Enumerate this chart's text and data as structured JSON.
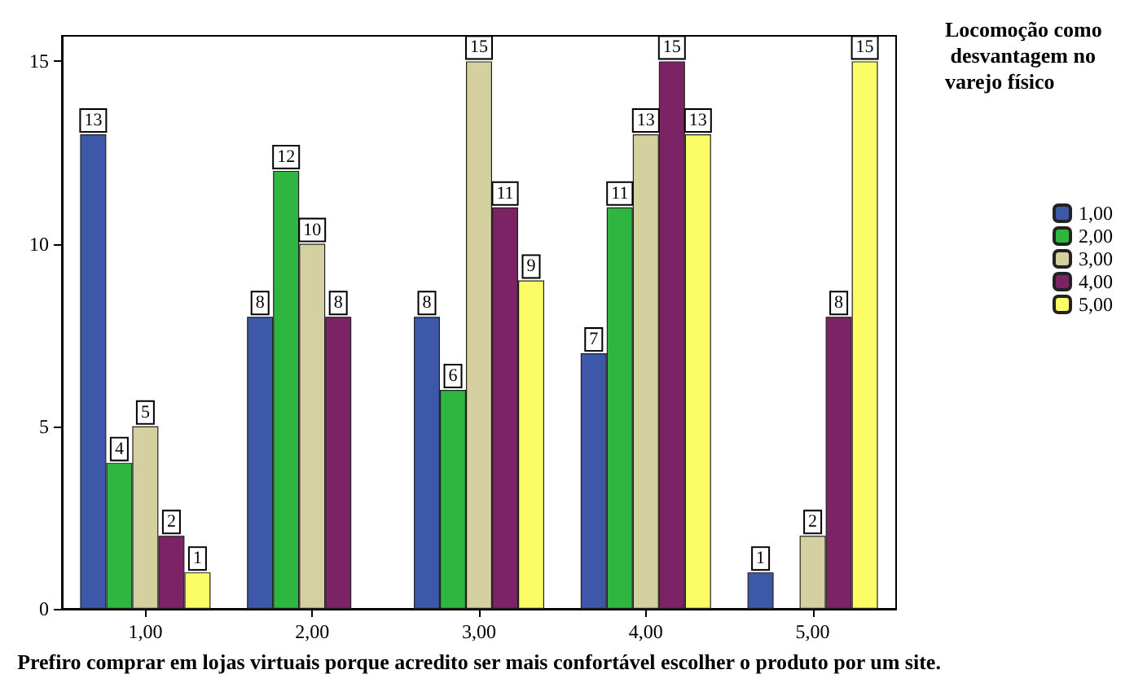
{
  "chart_data": {
    "type": "bar",
    "categories": [
      "1,00",
      "2,00",
      "3,00",
      "4,00",
      "5,00"
    ],
    "series": [
      {
        "name": "1,00",
        "color": "#3d58a8",
        "values": [
          13,
          8,
          8,
          7,
          1
        ]
      },
      {
        "name": "2,00",
        "color": "#2fb641",
        "values": [
          4,
          12,
          6,
          11,
          null
        ]
      },
      {
        "name": "3,00",
        "color": "#d5d0a0",
        "values": [
          5,
          10,
          15,
          13,
          2
        ]
      },
      {
        "name": "4,00",
        "color": "#7b2364",
        "values": [
          2,
          8,
          11,
          15,
          8
        ]
      },
      {
        "name": "5,00",
        "color": "#fcfc66",
        "values": [
          1,
          null,
          9,
          13,
          15
        ]
      }
    ],
    "xlabel": "Prefiro comprar em lojas virtuais porque acredito ser mais confortável escolher o produto por um site.",
    "legend_title": "Locomoção como desvantagem no varejo físico",
    "ylim": [
      0,
      15.7
    ],
    "yticks": [
      0,
      5,
      10,
      15
    ],
    "data_labels": true,
    "legend": "right",
    "grid": false
  }
}
